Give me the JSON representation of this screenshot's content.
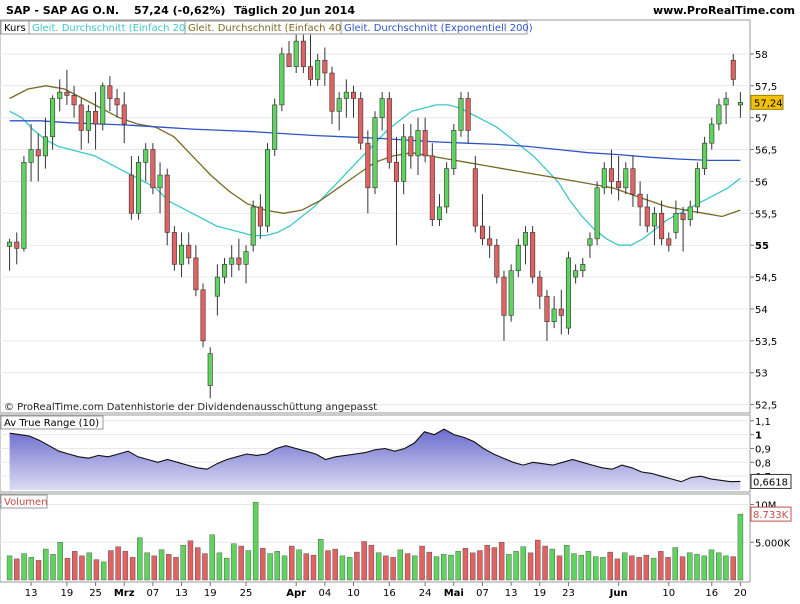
{
  "header": {
    "title": "SAP - SAP AG O.N.",
    "last": "57,24 (-0,62%)",
    "period": "Täglich  20 Jun 2014",
    "site": "www.ProRealTime.com"
  },
  "legend": {
    "kurs": "Kurs",
    "sma20": "Gleit. Durchschnitt (Einfach 20)",
    "sma40": "Gleit. Durchschnitt (Einfach 40)",
    "ema200": "Gleit. Durchschnitt (Exponentiell 200)"
  },
  "copyright": "© ProRealTime.com  Datenhistorie der Dividendenausschüttung angepasst",
  "price_axis": {
    "ticks": [
      "58",
      "57,5",
      "57",
      "56,5",
      "56",
      "55,5",
      "55",
      "54,5",
      "54",
      "53,5",
      "53",
      "52,5"
    ],
    "last_tag": "57,24"
  },
  "atr": {
    "title": "Av True Range (10)",
    "ticks": [
      "1,1",
      "1",
      "0,9",
      "0,8",
      "0,7"
    ],
    "last_tag": "0,6618"
  },
  "volume": {
    "title": "Volumen",
    "ticks": [
      "10M",
      "5.000K"
    ],
    "last_tag": "8.733K"
  },
  "xaxis": {
    "labels": [
      "13",
      "19",
      "25",
      "Mrz",
      "07",
      "13",
      "19",
      "25",
      "Apr",
      "04",
      "10",
      "16",
      "24",
      "Mai",
      "07",
      "13",
      "19",
      "23",
      "Jun",
      "10",
      "16",
      "20"
    ]
  },
  "colors": {
    "up": "#5fd35f",
    "down": "#e06262",
    "sma20": "#3cc8c8",
    "sma40": "#7a6a26",
    "ema200": "#2f54c8",
    "atr_fill": "#6b6ccc",
    "last_tag": "#f2c200"
  },
  "chart_data": [
    {
      "type": "candlestick",
      "title": "SAP - SAP AG O.N.",
      "ylabel": "",
      "ylim": [
        52.4,
        58.5
      ],
      "series": [
        {
          "name": "Kurs",
          "candles": [
            [
              54.98,
              55.1,
              54.6,
              55.05
            ],
            [
              55.05,
              55.2,
              54.7,
              54.95
            ],
            [
              54.95,
              56.4,
              54.9,
              56.3
            ],
            [
              56.3,
              56.9,
              56.0,
              56.5
            ],
            [
              56.5,
              56.75,
              56.0,
              56.4
            ],
            [
              56.4,
              57.0,
              56.2,
              56.7
            ],
            [
              56.7,
              57.35,
              56.5,
              57.3
            ],
            [
              57.3,
              57.6,
              57.1,
              57.4
            ],
            [
              57.4,
              57.75,
              57.2,
              57.35
            ],
            [
              57.35,
              57.5,
              57.0,
              57.2
            ],
            [
              57.2,
              57.3,
              56.5,
              56.8
            ],
            [
              56.8,
              57.2,
              56.6,
              57.1
            ],
            [
              57.1,
              57.4,
              56.5,
              56.9
            ],
            [
              56.9,
              57.55,
              56.8,
              57.5
            ],
            [
              57.5,
              57.65,
              57.1,
              57.3
            ],
            [
              57.3,
              57.45,
              57.0,
              57.2
            ],
            [
              57.2,
              57.4,
              56.6,
              56.9
            ],
            [
              56.1,
              56.4,
              55.4,
              55.5
            ],
            [
              55.5,
              56.4,
              55.4,
              56.3
            ],
            [
              56.3,
              56.6,
              56.0,
              56.5
            ],
            [
              56.5,
              56.6,
              55.8,
              55.9
            ],
            [
              55.9,
              56.3,
              55.5,
              56.1
            ],
            [
              56.1,
              56.2,
              55.0,
              55.2
            ],
            [
              55.2,
              55.3,
              54.6,
              54.7
            ],
            [
              54.7,
              55.2,
              54.5,
              55.0
            ],
            [
              55.0,
              55.2,
              54.7,
              54.8
            ],
            [
              54.8,
              55.0,
              54.2,
              54.3
            ],
            [
              54.3,
              54.4,
              53.4,
              53.5
            ],
            [
              52.8,
              53.4,
              52.6,
              53.3
            ],
            [
              54.2,
              54.7,
              53.9,
              54.5
            ],
            [
              54.5,
              54.8,
              54.4,
              54.7
            ],
            [
              54.7,
              55.0,
              54.5,
              54.8
            ],
            [
              54.8,
              55.1,
              54.6,
              54.7
            ],
            [
              54.7,
              55.0,
              54.4,
              54.9
            ],
            [
              55.0,
              55.7,
              54.9,
              55.6
            ],
            [
              55.6,
              55.8,
              55.1,
              55.3
            ],
            [
              55.3,
              56.6,
              55.2,
              56.5
            ],
            [
              56.5,
              57.3,
              56.4,
              57.2
            ],
            [
              57.2,
              58.1,
              57.1,
              58.0
            ],
            [
              58.0,
              58.2,
              57.8,
              57.8
            ],
            [
              57.8,
              58.3,
              57.7,
              58.2
            ],
            [
              58.2,
              58.3,
              57.7,
              57.8
            ],
            [
              57.8,
              58.3,
              57.5,
              57.6
            ],
            [
              57.6,
              58.0,
              57.5,
              57.9
            ],
            [
              57.9,
              58.1,
              57.5,
              57.7
            ],
            [
              57.7,
              57.8,
              56.9,
              57.1
            ],
            [
              57.1,
              57.4,
              56.8,
              57.3
            ],
            [
              57.3,
              57.6,
              57.0,
              57.4
            ],
            [
              57.4,
              57.5,
              57.0,
              57.3
            ],
            [
              57.3,
              57.4,
              56.5,
              56.6
            ],
            [
              56.6,
              56.8,
              55.5,
              55.9
            ],
            [
              55.9,
              57.1,
              55.8,
              57.0
            ],
            [
              57.0,
              57.4,
              56.8,
              57.3
            ],
            [
              57.3,
              57.4,
              56.2,
              56.3
            ],
            [
              56.3,
              56.7,
              55.0,
              56.0
            ],
            [
              56.0,
              56.9,
              55.8,
              56.7
            ],
            [
              56.7,
              56.9,
              56.2,
              56.4
            ],
            [
              56.4,
              57.0,
              56.1,
              56.8
            ],
            [
              56.8,
              57.0,
              56.3,
              56.4
            ],
            [
              56.4,
              56.6,
              55.3,
              55.4
            ],
            [
              55.4,
              55.8,
              55.3,
              55.6
            ],
            [
              55.6,
              56.3,
              55.5,
              56.2
            ],
            [
              56.2,
              56.9,
              56.1,
              56.8
            ],
            [
              56.8,
              57.4,
              56.7,
              57.3
            ],
            [
              57.3,
              57.4,
              56.6,
              56.8
            ],
            [
              56.2,
              56.4,
              55.2,
              55.3
            ],
            [
              55.3,
              55.8,
              55.0,
              55.1
            ],
            [
              55.1,
              55.3,
              54.8,
              55.0
            ],
            [
              55.0,
              55.1,
              54.4,
              54.5
            ],
            [
              54.5,
              54.6,
              53.5,
              53.9
            ],
            [
              53.9,
              54.7,
              53.8,
              54.6
            ],
            [
              54.6,
              55.1,
              54.5,
              55.0
            ],
            [
              55.0,
              55.3,
              54.7,
              55.2
            ],
            [
              55.2,
              55.3,
              54.4,
              54.5
            ],
            [
              54.5,
              54.6,
              54.0,
              54.2
            ],
            [
              54.2,
              54.3,
              53.5,
              53.8
            ],
            [
              53.8,
              54.2,
              53.7,
              54.0
            ],
            [
              54.0,
              54.3,
              53.6,
              53.9
            ],
            [
              53.7,
              54.9,
              53.6,
              54.8
            ],
            [
              54.5,
              54.7,
              54.4,
              54.6
            ],
            [
              54.6,
              54.8,
              54.5,
              54.7
            ],
            [
              55.0,
              55.2,
              54.8,
              55.1
            ],
            [
              55.1,
              56.0,
              55.0,
              55.9
            ],
            [
              55.9,
              56.3,
              55.8,
              56.2
            ],
            [
              56.2,
              56.5,
              55.8,
              56.0
            ],
            [
              56.0,
              56.4,
              55.7,
              55.9
            ],
            [
              55.9,
              56.3,
              55.8,
              56.2
            ],
            [
              56.2,
              56.4,
              55.6,
              55.8
            ],
            [
              55.8,
              56.0,
              55.3,
              55.6
            ],
            [
              55.6,
              55.8,
              55.2,
              55.3
            ],
            [
              55.3,
              55.6,
              55.0,
              55.5
            ],
            [
              55.5,
              55.7,
              55.0,
              55.1
            ],
            [
              55.1,
              55.2,
              54.9,
              55.0
            ],
            [
              55.2,
              55.7,
              55.1,
              55.5
            ],
            [
              55.5,
              55.6,
              54.9,
              55.4
            ],
            [
              55.4,
              55.7,
              55.3,
              55.6
            ],
            [
              55.6,
              56.3,
              55.5,
              56.2
            ],
            [
              56.2,
              56.7,
              56.1,
              56.6
            ],
            [
              56.6,
              57.0,
              56.5,
              56.9
            ],
            [
              56.9,
              57.3,
              56.8,
              57.2
            ],
            [
              57.2,
              57.4,
              56.9,
              57.3
            ],
            [
              57.9,
              58.0,
              57.5,
              57.6
            ],
            [
              57.2,
              57.4,
              57.0,
              57.24
            ]
          ]
        },
        {
          "name": "Gleit. Durchschnitt (Einfach 20)",
          "values": [
            57.1,
            57.0,
            56.8,
            56.65,
            56.55,
            56.5,
            56.45,
            56.4,
            56.3,
            56.2,
            56.1,
            56.0,
            55.9,
            55.7,
            55.6,
            55.5,
            55.4,
            55.3,
            55.25,
            55.2,
            55.15,
            55.15,
            55.2,
            55.3,
            55.45,
            55.6,
            55.8,
            56.0,
            56.2,
            56.4,
            56.6,
            56.8,
            56.95,
            57.1,
            57.15,
            57.2,
            57.2,
            57.15,
            57.05,
            56.95,
            56.85,
            56.7,
            56.55,
            56.4,
            56.2,
            56.0,
            55.7,
            55.45,
            55.25,
            55.1,
            55.0,
            55.0,
            55.1,
            55.25,
            55.4,
            55.5,
            55.6,
            55.7,
            55.8,
            55.9,
            56.05
          ]
        },
        {
          "name": "Gleit. Durchschnitt (Einfach 40)",
          "values": [
            57.3,
            57.45,
            57.5,
            57.45,
            57.3,
            57.15,
            57.0,
            56.9,
            56.85,
            56.7,
            56.4,
            56.1,
            55.85,
            55.65,
            55.55,
            55.5,
            55.55,
            55.7,
            55.9,
            56.1,
            56.3,
            56.4,
            56.45,
            56.4,
            56.35,
            56.3,
            56.25,
            56.2,
            56.15,
            56.1,
            56.05,
            56.0,
            55.95,
            55.9,
            55.8,
            55.7,
            55.6,
            55.55,
            55.5,
            55.45,
            55.55
          ]
        },
        {
          "name": "Gleit. Durchschnitt (Exponentiell 200)",
          "values": [
            56.95,
            56.95,
            56.92,
            56.9,
            56.88,
            56.85,
            56.82,
            56.8,
            56.78,
            56.75,
            56.72,
            56.7,
            56.68,
            56.65,
            56.62,
            56.6,
            56.58,
            56.55,
            56.5,
            56.45,
            56.42,
            56.38,
            56.35,
            56.33,
            56.33
          ]
        }
      ]
    },
    {
      "type": "area",
      "title": "Av True Range (10)",
      "ylim": [
        0.6,
        1.12
      ],
      "series": [
        {
          "name": "Av True Range (10)",
          "values": [
            1.01,
            1.0,
            0.99,
            0.96,
            0.92,
            0.88,
            0.86,
            0.84,
            0.83,
            0.85,
            0.84,
            0.86,
            0.88,
            0.84,
            0.82,
            0.8,
            0.82,
            0.8,
            0.78,
            0.76,
            0.75,
            0.79,
            0.82,
            0.84,
            0.86,
            0.85,
            0.86,
            0.9,
            0.92,
            0.9,
            0.88,
            0.86,
            0.82,
            0.84,
            0.85,
            0.86,
            0.87,
            0.89,
            0.9,
            0.88,
            0.9,
            0.94,
            1.02,
            1.0,
            1.04,
            1.0,
            0.98,
            0.95,
            0.9,
            0.86,
            0.83,
            0.8,
            0.78,
            0.8,
            0.79,
            0.78,
            0.8,
            0.82,
            0.8,
            0.78,
            0.76,
            0.75,
            0.78,
            0.76,
            0.73,
            0.72,
            0.7,
            0.68,
            0.66,
            0.69,
            0.7,
            0.68,
            0.67,
            0.66,
            0.6618
          ]
        }
      ]
    },
    {
      "type": "bar",
      "title": "Volumen",
      "ylim": [
        0,
        11
      ],
      "series": [
        {
          "name": "Volumen",
          "values": [
            3.2,
            2.8,
            3.5,
            3.0,
            2.6,
            4.1,
            3.4,
            5.0,
            2.9,
            3.8,
            3.2,
            3.6,
            2.7,
            2.4,
            3.9,
            4.4,
            3.8,
            3.0,
            5.6,
            3.6,
            3.2,
            4.0,
            3.4,
            3.0,
            4.6,
            5.2,
            4.3,
            3.5,
            6.0,
            3.6,
            2.9,
            4.8,
            4.5,
            3.9,
            10.3,
            4.2,
            3.5,
            3.8,
            3.2,
            4.5,
            4.0,
            3.5,
            3.3,
            5.4,
            3.9,
            4.1,
            3.2,
            3.0,
            3.7,
            5.1,
            4.6,
            3.6,
            3.2,
            3.0,
            4.0,
            3.5,
            3.2,
            4.5,
            3.7,
            3.1,
            3.4,
            3.3,
            3.8,
            4.2,
            3.6,
            3.9,
            4.6,
            4.3,
            5.0,
            3.4,
            3.8,
            4.4,
            3.6,
            5.3,
            4.5,
            4.1,
            3.2,
            4.6,
            3.5,
            3.3,
            3.8,
            3.1,
            3.0,
            3.7,
            2.8,
            3.6,
            3.2,
            3.0,
            3.3,
            2.9,
            3.8,
            3.0,
            4.3,
            3.1,
            3.6,
            3.4,
            3.2,
            4.0,
            3.6,
            3.2,
            3.1,
            8.733
          ]
        }
      ]
    }
  ]
}
